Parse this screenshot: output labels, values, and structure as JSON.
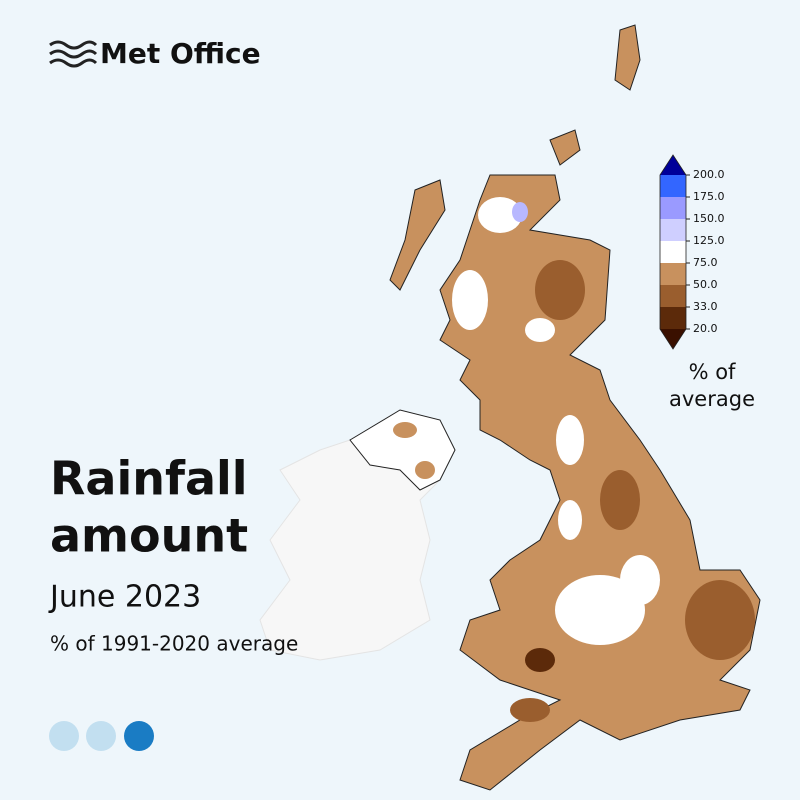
{
  "logo": {
    "text": "Met Office"
  },
  "title": {
    "lines": [
      "Rainfall",
      "amount"
    ]
  },
  "subtitle": "June 2023",
  "caption": "% of 1991-2020 average",
  "colorbar": {
    "ticks": [
      {
        "value": 20,
        "label": "20.0"
      },
      {
        "value": 33,
        "label": "33.0"
      },
      {
        "value": 50,
        "label": "50.0"
      },
      {
        "value": 75,
        "label": "75.0"
      },
      {
        "value": 125,
        "label": "125.0"
      },
      {
        "value": 150,
        "label": "150.0"
      },
      {
        "value": 175,
        "label": "175.0"
      },
      {
        "value": 200,
        "label": "200.0"
      }
    ],
    "colors": [
      "#5c2a0a",
      "#9a5e2e",
      "#c8915e",
      "#ffffff",
      "#cfcfff",
      "#9a9aff",
      "#3366ff"
    ],
    "extend_colors": {
      "min": "#3a1000",
      "max": "#000099"
    },
    "label_lines": [
      "% of",
      "average"
    ]
  }
}
